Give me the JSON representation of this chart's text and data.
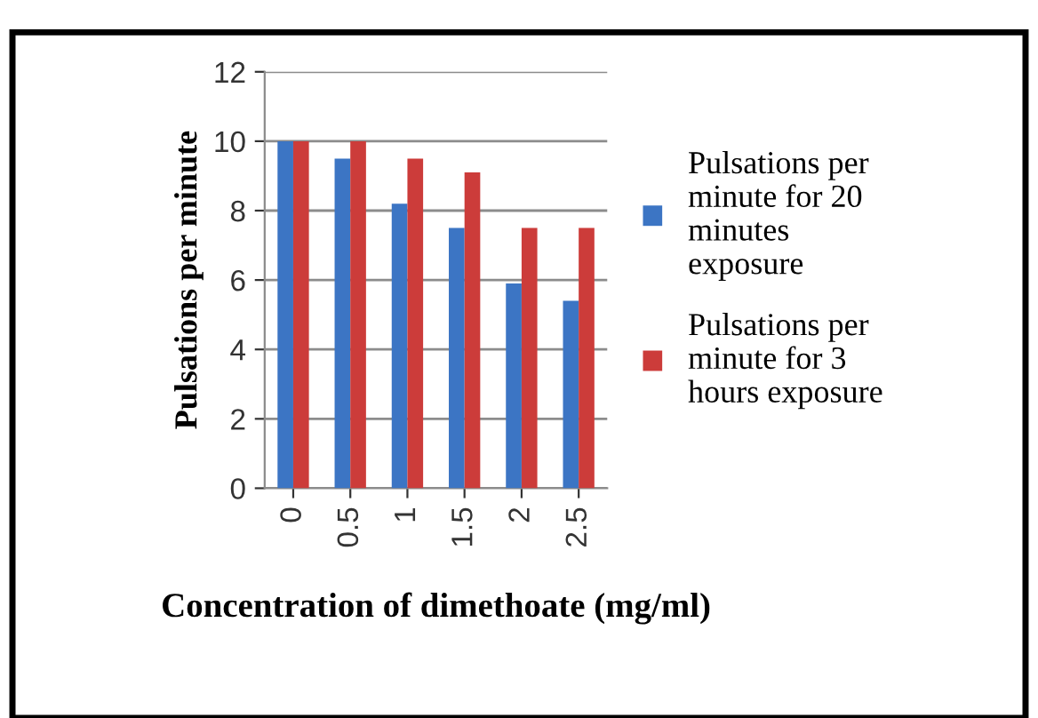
{
  "chart_data": {
    "type": "bar",
    "xlabel": "Concentration of dimethoate (mg/ml)",
    "ylabel": "Pulsations per minute",
    "categories": [
      "0",
      "0.5",
      "1",
      "1.5",
      "2",
      "2.5"
    ],
    "series": [
      {
        "name": "Pulsations per minute for 20 minutes exposure",
        "color": "#3c75c4",
        "values": [
          10,
          9.5,
          8.2,
          7.5,
          5.9,
          5.4
        ]
      },
      {
        "name": "Pulsations per minute for 3 hours exposure",
        "color": "#cc3c3a",
        "values": [
          10,
          10,
          9.5,
          9.1,
          7.5,
          7.5
        ]
      }
    ],
    "ylim": [
      0,
      12
    ],
    "yticks": [
      0,
      2,
      4,
      6,
      8,
      10,
      12
    ],
    "grid": "y",
    "legend": "right"
  }
}
